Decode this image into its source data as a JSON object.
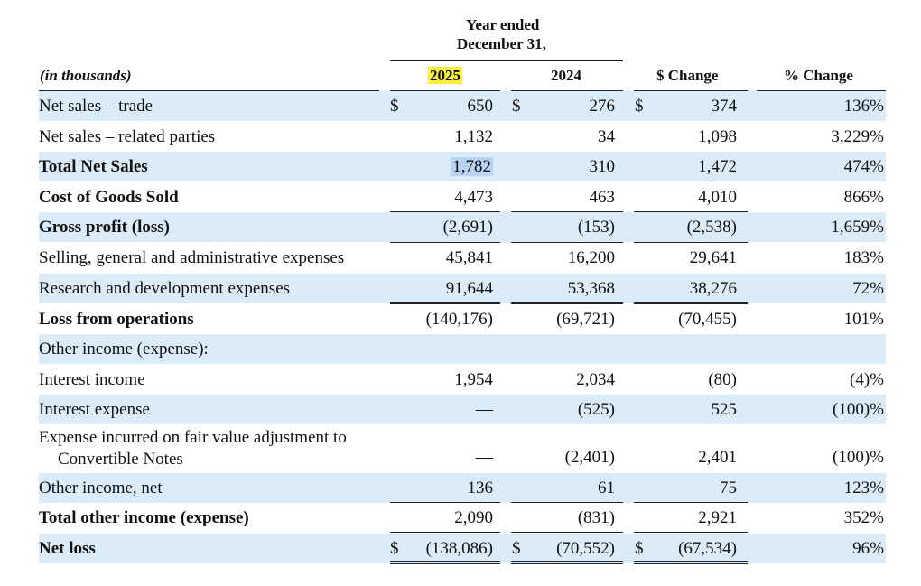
{
  "header": {
    "group_line1": "Year ended",
    "group_line2": "December 31,",
    "units": "(in thousands)",
    "col_2025": "2025",
    "col_2024": "2024",
    "col_dchange": "$ Change",
    "col_pchange": "% Change"
  },
  "rows": [
    {
      "label": "Net sales – trade",
      "bold": false,
      "shaded": true,
      "d1": "$",
      "v2025": "650",
      "d2": "$",
      "v2024": "276",
      "d3": "$",
      "dchg": "374",
      "pchg": "136%"
    },
    {
      "label": "Net sales – related parties",
      "bold": false,
      "shaded": false,
      "v2025": "1,132",
      "v2024": "34",
      "dchg": "1,098",
      "pchg": "3,229%"
    },
    {
      "label": "Total Net Sales",
      "bold": true,
      "shaded": true,
      "v2025": "1,782",
      "v2024": "310",
      "dchg": "1,472",
      "pchg": "474%"
    },
    {
      "label": "Cost of Goods Sold",
      "bold": true,
      "shaded": false,
      "v2025": "4,473",
      "v2024": "463",
      "dchg": "4,010",
      "pchg": "866%"
    },
    {
      "label": "Gross profit (loss)",
      "bold": true,
      "shaded": true,
      "v2025": "(2,691)",
      "v2024": "(153)",
      "dchg": "(2,538)",
      "pchg": "1,659%"
    },
    {
      "label": "Selling, general and administrative expenses",
      "bold": false,
      "shaded": false,
      "v2025": "45,841",
      "v2024": "16,200",
      "dchg": "29,641",
      "pchg": "183%"
    },
    {
      "label": "Research and development expenses",
      "bold": false,
      "shaded": true,
      "v2025": "91,644",
      "v2024": "53,368",
      "dchg": "38,276",
      "pchg": "72%"
    },
    {
      "label": "Loss from operations",
      "bold": true,
      "shaded": false,
      "v2025": "(140,176)",
      "v2024": "(69,721)",
      "dchg": "(70,455)",
      "pchg": "101%"
    },
    {
      "label": "Other income (expense):",
      "bold": false,
      "shaded": true,
      "v2025": "",
      "v2024": "",
      "dchg": "",
      "pchg": ""
    },
    {
      "label": "Interest income",
      "bold": false,
      "shaded": false,
      "v2025": "1,954",
      "v2024": "2,034",
      "dchg": "(80)",
      "pchg": "(4)%"
    },
    {
      "label": "Interest expense",
      "bold": false,
      "shaded": true,
      "v2025": "—",
      "v2024": "(525)",
      "dchg": "525",
      "pchg": "(100)%"
    },
    {
      "label": "Expense incurred on fair value adjustment to",
      "label2": "Convertible Notes",
      "bold": false,
      "shaded": false,
      "v2025": "—",
      "v2024": "(2,401)",
      "dchg": "2,401",
      "pchg": "(100)%"
    },
    {
      "label": "Other income, net",
      "bold": false,
      "shaded": true,
      "v2025": "136",
      "v2024": "61",
      "dchg": "75",
      "pchg": "123%"
    },
    {
      "label": "Total other income (expense)",
      "bold": true,
      "shaded": false,
      "v2025": "2,090",
      "v2024": "(831)",
      "dchg": "2,921",
      "pchg": "352%"
    },
    {
      "label": "Net loss",
      "bold": true,
      "shaded": true,
      "d1": "$",
      "v2025": "(138,086)",
      "d2": "$",
      "v2024": "(70,552)",
      "d3": "$",
      "dchg": "(67,534)",
      "pchg": "96%"
    }
  ]
}
